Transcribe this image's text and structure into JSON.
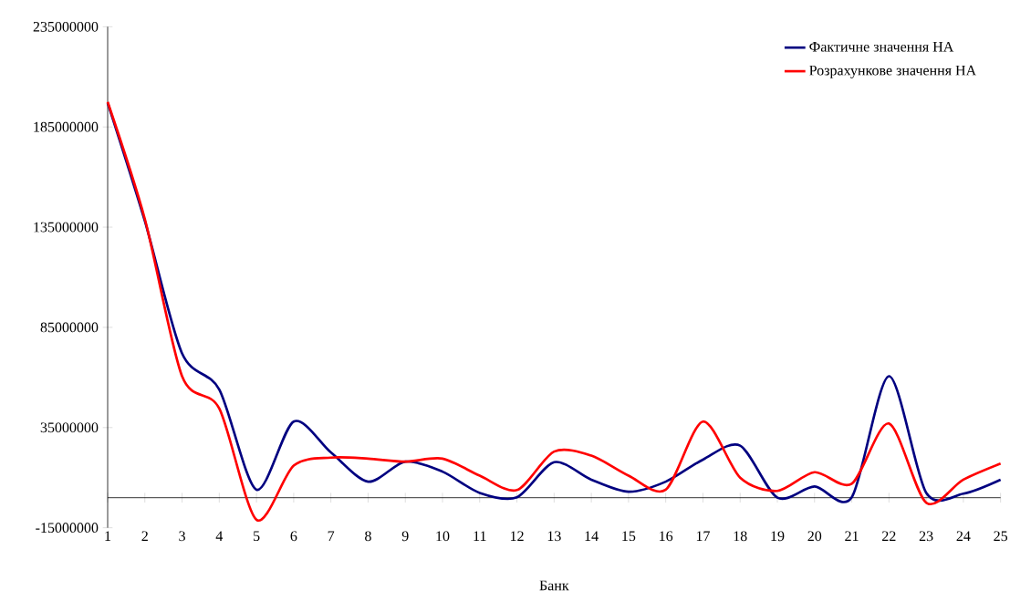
{
  "chart_data": {
    "type": "line",
    "xlabel": "Банк",
    "categories": [
      "1",
      "2",
      "3",
      "4",
      "5",
      "6",
      "7",
      "8",
      "9",
      "10",
      "11",
      "12",
      "13",
      "14",
      "15",
      "16",
      "17",
      "18",
      "19",
      "20",
      "21",
      "22",
      "23",
      "24",
      "25"
    ],
    "series": [
      {
        "name": "Фактичне значення НА",
        "color": "#000080",
        "values": [
          197000000,
          138000000,
          72000000,
          54000000,
          4000000,
          38000000,
          22600000,
          8000000,
          18000000,
          13000000,
          2400000,
          200000,
          17700000,
          9000000,
          3000000,
          8000000,
          19000000,
          26000000,
          0,
          5600000,
          200000,
          60600000,
          2500000,
          2000000,
          9000000
        ]
      },
      {
        "name": "Розрахункове значення НА",
        "color": "#ff0000",
        "values": [
          197500000,
          139000000,
          60600000,
          44500000,
          -11000000,
          16000000,
          20000000,
          19500000,
          18000000,
          19500000,
          11000000,
          3800000,
          23000000,
          21000000,
          11000000,
          4000000,
          38000000,
          10000000,
          3400000,
          12700000,
          7000000,
          37000000,
          -2500000,
          9000000,
          17000000
        ]
      }
    ],
    "ylim": [
      -15000000,
      235000000
    ],
    "yticks": [
      -15000000,
      35000000,
      85000000,
      135000000,
      185000000,
      235000000
    ],
    "grid": false,
    "legend": "top right",
    "marker": "none",
    "line_style": "solid"
  }
}
